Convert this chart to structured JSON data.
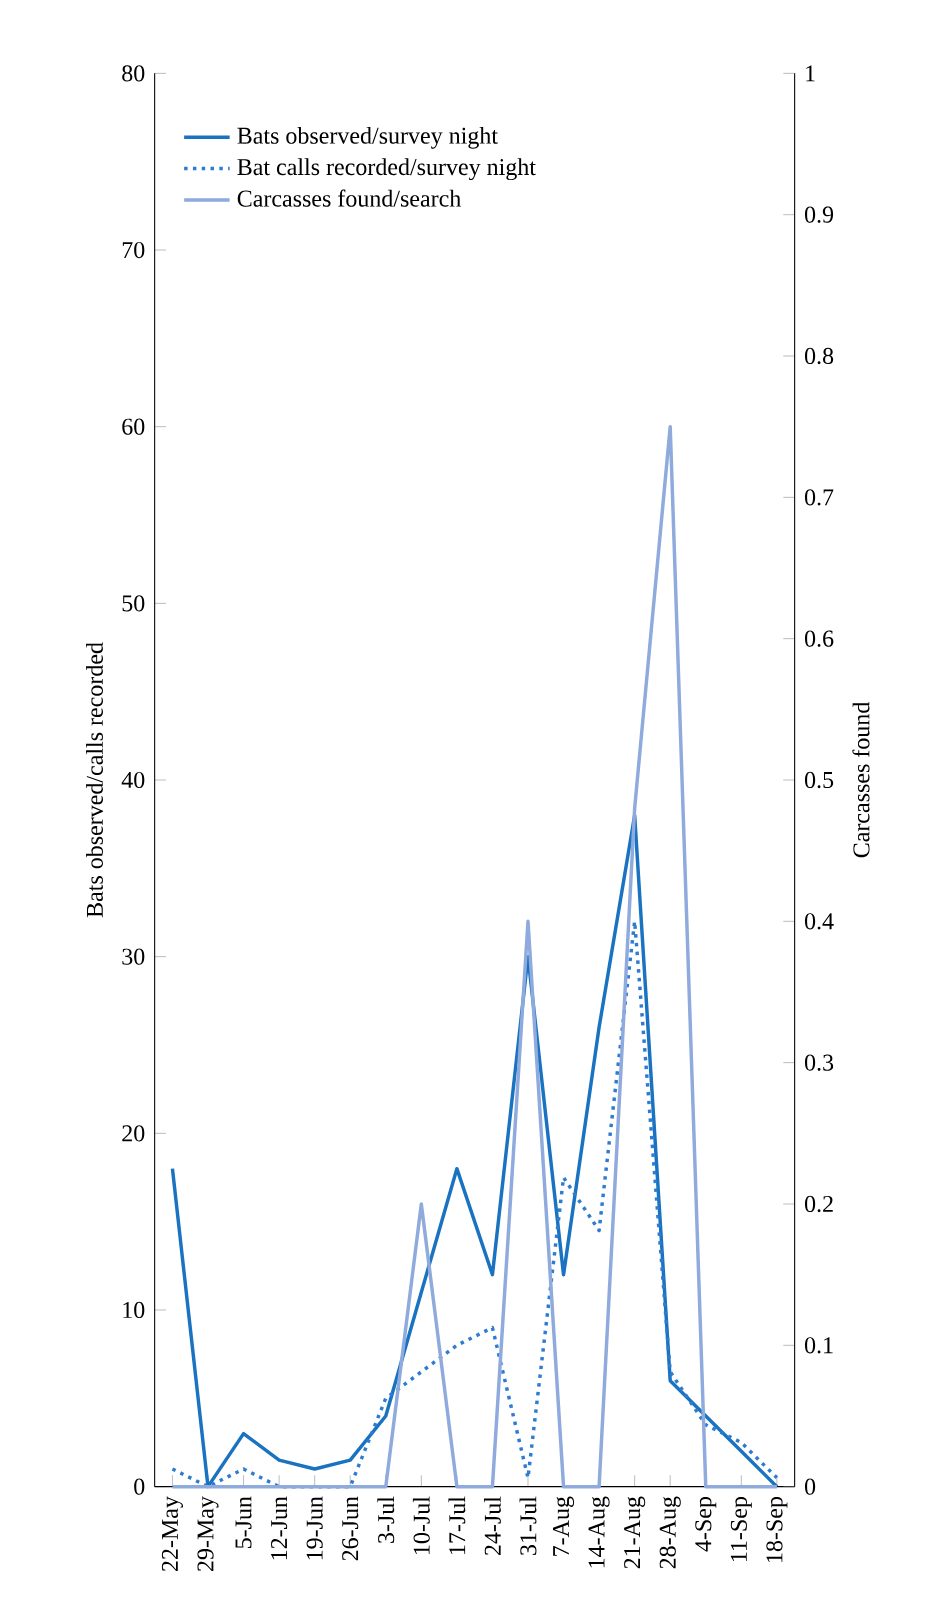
{
  "chart_data": {
    "type": "line",
    "ylabel": "Bats observed/calls recorded",
    "y2label": "Carcasses found",
    "categories": [
      "22-May",
      "29-May",
      "5-Jun",
      "12-Jun",
      "19-Jun",
      "26-Jun",
      "3-Jul",
      "10-Jul",
      "17-Jul",
      "24-Jul",
      "31-Jul",
      "7-Aug",
      "14-Aug",
      "21-Aug",
      "28-Aug",
      "4-Sep",
      "11-Sep",
      "18-Sep"
    ],
    "series": [
      {
        "name": "Bats observed/survey night",
        "color": "#1a73c0",
        "line_style": "solid",
        "values": [
          18,
          0,
          3,
          1.5,
          1,
          1.5,
          4,
          11,
          18,
          12,
          30,
          12,
          26,
          38,
          6,
          4,
          2,
          0
        ]
      },
      {
        "name": "Bat calls recorded/survey night",
        "color": "#2e7bcf",
        "line_style": "dotted",
        "values": [
          1,
          0,
          1,
          0,
          0,
          0,
          5,
          6.5,
          8,
          9,
          0.5,
          17.5,
          14.5,
          32,
          6.5,
          3.5,
          2.5,
          0.5
        ]
      },
      {
        "name": "Carcasses found/search",
        "color": "#8faadc",
        "line_style": "solid",
        "axis": "y2",
        "values": [
          0,
          0,
          0,
          0,
          0,
          0,
          0,
          0.2,
          0,
          0,
          0.4,
          0,
          0,
          0.48,
          0.75,
          0,
          0,
          0
        ]
      }
    ],
    "ylim": [
      0,
      80
    ],
    "yticks": [
      0,
      10,
      20,
      30,
      40,
      50,
      60,
      70,
      80
    ],
    "y2lim": [
      0,
      1
    ],
    "y2ticks": [
      0,
      0.1,
      0.2,
      0.3,
      0.4,
      0.5,
      0.6,
      0.7,
      0.8,
      0.9,
      1
    ],
    "grid": false,
    "legend": "top left",
    "marker": "none"
  }
}
